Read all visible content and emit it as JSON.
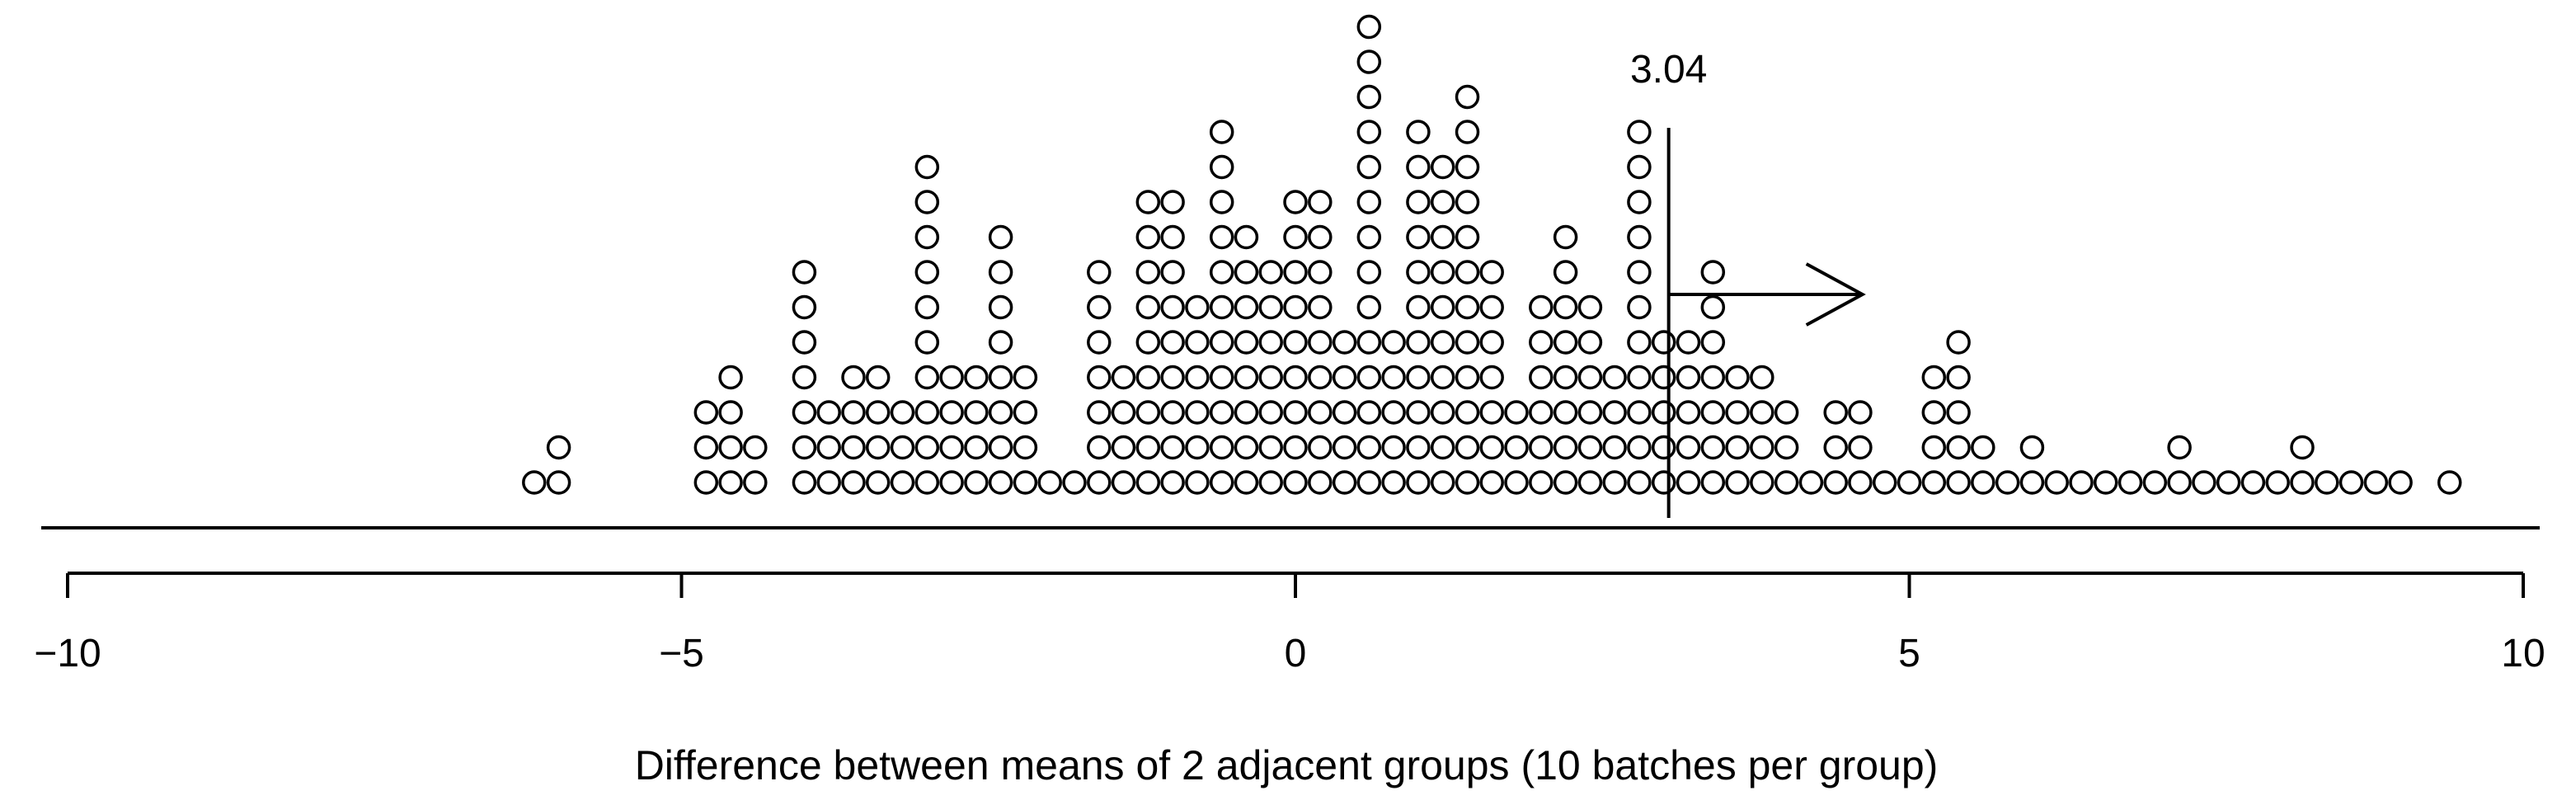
{
  "chart_data": {
    "type": "scatter",
    "subtype": "dot-plot",
    "title": "",
    "xlabel": "Difference between means of 2 adjacent groups (10 batches per group)",
    "ylabel": "",
    "xlim": [
      -10,
      10
    ],
    "x_ticks": [
      -10,
      -5,
      0,
      5,
      10
    ],
    "x_tick_labels": [
      "−10",
      "−5",
      "0",
      "5",
      "10"
    ],
    "grid": false,
    "legend": "none",
    "marker": "open-circle",
    "colors": {
      "ink": "#000000",
      "background": "#ffffff"
    },
    "observed": {
      "value": 3.04,
      "label": "3.04",
      "arrow_direction": "right"
    },
    "bins": [
      {
        "x": -6.2,
        "count": 1
      },
      {
        "x": -6.0,
        "count": 2
      },
      {
        "x": -4.8,
        "count": 3
      },
      {
        "x": -4.6,
        "count": 4
      },
      {
        "x": -4.4,
        "count": 2
      },
      {
        "x": -4.0,
        "count": 7
      },
      {
        "x": -3.8,
        "count": 3
      },
      {
        "x": -3.6,
        "count": 4
      },
      {
        "x": -3.4,
        "count": 4
      },
      {
        "x": -3.2,
        "count": 3
      },
      {
        "x": -3.0,
        "count": 10
      },
      {
        "x": -2.8,
        "count": 4
      },
      {
        "x": -2.6,
        "count": 4
      },
      {
        "x": -2.4,
        "count": 8
      },
      {
        "x": -2.2,
        "count": 4
      },
      {
        "x": -2.0,
        "count": 1
      },
      {
        "x": -1.8,
        "count": 1
      },
      {
        "x": -1.6,
        "count": 7
      },
      {
        "x": -1.4,
        "count": 4
      },
      {
        "x": -1.2,
        "count": 9
      },
      {
        "x": -1.0,
        "count": 9
      },
      {
        "x": -0.8,
        "count": 6
      },
      {
        "x": -0.6,
        "count": 11
      },
      {
        "x": -0.4,
        "count": 8
      },
      {
        "x": -0.2,
        "count": 7
      },
      {
        "x": 0.0,
        "count": 9
      },
      {
        "x": 0.2,
        "count": 9
      },
      {
        "x": 0.4,
        "count": 5
      },
      {
        "x": 0.6,
        "count": 14
      },
      {
        "x": 0.8,
        "count": 5
      },
      {
        "x": 1.0,
        "count": 11
      },
      {
        "x": 1.2,
        "count": 10
      },
      {
        "x": 1.4,
        "count": 12
      },
      {
        "x": 1.6,
        "count": 7
      },
      {
        "x": 1.8,
        "count": 3
      },
      {
        "x": 2.0,
        "count": 6
      },
      {
        "x": 2.2,
        "count": 8
      },
      {
        "x": 2.4,
        "count": 6
      },
      {
        "x": 2.6,
        "count": 4
      },
      {
        "x": 2.8,
        "count": 11
      },
      {
        "x": 3.0,
        "count": 5
      },
      {
        "x": 3.2,
        "count": 5
      },
      {
        "x": 3.4,
        "count": 7
      },
      {
        "x": 3.6,
        "count": 4
      },
      {
        "x": 3.8,
        "count": 4
      },
      {
        "x": 4.0,
        "count": 3
      },
      {
        "x": 4.2,
        "count": 1
      },
      {
        "x": 4.4,
        "count": 3
      },
      {
        "x": 4.6,
        "count": 3
      },
      {
        "x": 4.8,
        "count": 1
      },
      {
        "x": 5.0,
        "count": 1
      },
      {
        "x": 5.2,
        "count": 4
      },
      {
        "x": 5.4,
        "count": 5
      },
      {
        "x": 5.6,
        "count": 2
      },
      {
        "x": 5.8,
        "count": 1
      },
      {
        "x": 6.0,
        "count": 2
      },
      {
        "x": 6.2,
        "count": 1
      },
      {
        "x": 6.4,
        "count": 1
      },
      {
        "x": 6.6,
        "count": 1
      },
      {
        "x": 6.8,
        "count": 1
      },
      {
        "x": 7.0,
        "count": 1
      },
      {
        "x": 7.2,
        "count": 2
      },
      {
        "x": 7.4,
        "count": 1
      },
      {
        "x": 7.6,
        "count": 1
      },
      {
        "x": 7.8,
        "count": 1
      },
      {
        "x": 8.0,
        "count": 1
      },
      {
        "x": 8.2,
        "count": 2
      },
      {
        "x": 8.4,
        "count": 1
      },
      {
        "x": 8.6,
        "count": 1
      },
      {
        "x": 8.8,
        "count": 1
      },
      {
        "x": 9.0,
        "count": 1
      },
      {
        "x": 9.4,
        "count": 1
      }
    ]
  }
}
